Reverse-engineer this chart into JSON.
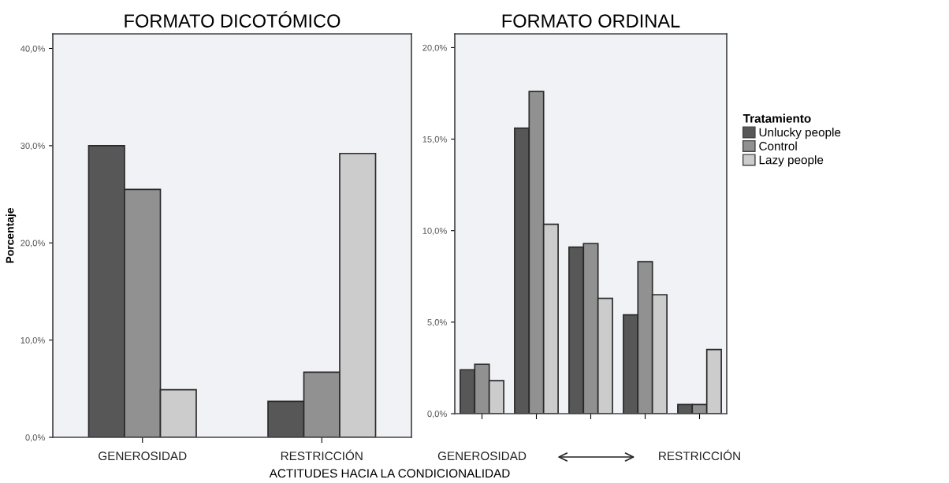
{
  "chart_data": [
    {
      "type": "bar",
      "title": "FORMATO DICOTÓMICO",
      "ylabel": "Porcentaje",
      "categories": [
        "GENEROSIDAD",
        "RESTRICCIÓN"
      ],
      "series": [
        {
          "color": "#575757",
          "values": [
            30.0,
            3.7
          ]
        },
        {
          "color": "#919191",
          "values": [
            25.5,
            6.7
          ]
        },
        {
          "color": "#cccccc",
          "values": [
            4.9,
            29.2
          ]
        }
      ],
      "ylim": [
        0,
        41.5
      ],
      "yticks": [
        {
          "value": 0,
          "label": "0,0%"
        },
        {
          "value": 10,
          "label": "10,0%"
        },
        {
          "value": 20,
          "label": "20,0%"
        },
        {
          "value": 30,
          "label": "30,0%"
        },
        {
          "value": 40,
          "label": "40,0%"
        }
      ],
      "grid": false
    },
    {
      "type": "bar",
      "title": "FORMATO ORDINAL",
      "xlabel": "ACTITUDES HACIA LA CONDICIONALIDAD",
      "legend_title": "Tratamiento",
      "categories": [
        "GENEROSIDAD",
        null,
        null,
        null,
        "RESTRICCIÓN"
      ],
      "series": [
        {
          "name": "Unlucky people",
          "color": "#575757",
          "values": [
            2.4,
            15.6,
            9.1,
            5.4,
            0.5
          ]
        },
        {
          "name": "Control",
          "color": "#919191",
          "values": [
            2.7,
            17.6,
            9.3,
            8.3,
            0.5
          ]
        },
        {
          "name": "Lazy people",
          "color": "#cccccc",
          "values": [
            1.8,
            10.35,
            6.3,
            6.5,
            3.5
          ]
        }
      ],
      "ylim": [
        0,
        20.75
      ],
      "yticks": [
        {
          "value": 0,
          "label": "0,0%"
        },
        {
          "value": 5,
          "label": "5,0%"
        },
        {
          "value": 10,
          "label": "10,0%"
        },
        {
          "value": 15,
          "label": "15,0%"
        },
        {
          "value": 20,
          "label": "20,0%"
        }
      ],
      "grid": false,
      "legend": "right"
    }
  ]
}
